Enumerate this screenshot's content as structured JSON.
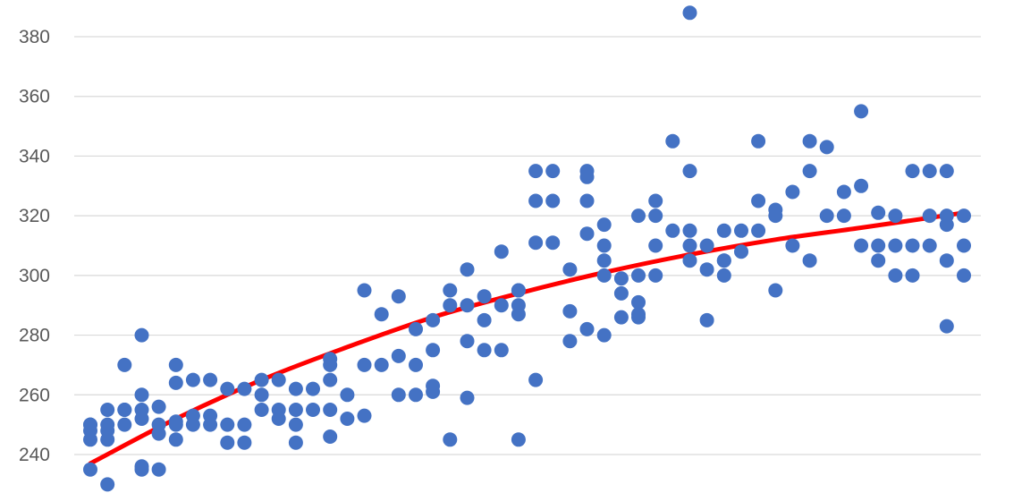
{
  "chart_data": {
    "type": "scatter",
    "title": "",
    "xlabel": "",
    "ylabel": "",
    "ylim": [
      230,
      390
    ],
    "y_ticks": [
      240,
      260,
      280,
      300,
      320,
      340,
      360,
      380
    ],
    "grid": true,
    "legend": "none",
    "colors": {
      "points": "#4472c4",
      "trendline": "#ff0000",
      "grid": "#d9d9d9",
      "tick_text": "#595959"
    },
    "xlim": [
      0,
      52.5
    ],
    "series": [
      {
        "name": "",
        "kind": "points",
        "x": [
          0,
          0,
          0,
          0,
          0,
          1,
          1,
          1,
          1,
          1,
          2,
          2,
          2,
          2,
          3,
          3,
          3,
          3,
          3,
          3,
          4,
          4,
          4,
          4,
          5,
          5,
          5,
          5,
          5,
          6,
          6,
          6,
          7,
          7,
          7,
          8,
          8,
          8,
          9,
          9,
          9,
          10,
          10,
          10,
          11,
          11,
          11,
          12,
          12,
          12,
          12,
          13,
          13,
          14,
          14,
          14,
          14,
          14,
          15,
          15,
          16,
          16,
          16,
          17,
          17,
          18,
          18,
          18,
          19,
          19,
          19,
          20,
          20,
          20,
          20,
          21,
          21,
          22,
          22,
          22,
          22,
          23,
          23,
          23,
          24,
          24,
          24,
          25,
          25,
          25,
          25,
          26,
          26,
          26,
          26,
          27,
          27,
          27,
          28,
          28,
          28,
          29,
          29,
          29,
          29,
          30,
          30,
          30,
          30,
          31,
          31,
          31,
          32,
          32,
          32,
          32,
          33,
          33,
          33,
          34,
          34,
          35,
          35,
          35,
          35,
          36,
          36,
          37,
          37,
          37,
          37,
          38,
          38,
          39,
          39,
          39,
          40,
          40,
          40,
          41,
          41,
          42,
          42,
          43,
          43,
          44,
          44,
          45,
          45,
          45,
          46,
          46,
          46,
          47,
          47,
          47,
          48,
          48,
          48,
          49,
          49,
          49,
          50,
          50,
          50,
          50,
          51,
          51,
          51
        ],
        "y": [
          250,
          248,
          245,
          250,
          235,
          255,
          250,
          245,
          248,
          230,
          270,
          255,
          250,
          255,
          280,
          260,
          255,
          252,
          236,
          235,
          256,
          250,
          247,
          235,
          270,
          264,
          251,
          245,
          250,
          265,
          253,
          250,
          265,
          253,
          250,
          262,
          250,
          244,
          262,
          250,
          244,
          265,
          260,
          255,
          265,
          255,
          252,
          262,
          255,
          250,
          244,
          262,
          255,
          272,
          270,
          265,
          255,
          246,
          260,
          252,
          295,
          270,
          253,
          287,
          270,
          293,
          273,
          260,
          282,
          270,
          260,
          285,
          275,
          263,
          261,
          295,
          290,
          302,
          290,
          278,
          259,
          293,
          285,
          275,
          308,
          290,
          275,
          295,
          290,
          287,
          245,
          335,
          325,
          311,
          265,
          335,
          325,
          311,
          302,
          288,
          278,
          335,
          333,
          325,
          314,
          317,
          310,
          305,
          300,
          299,
          294,
          286,
          300,
          291,
          287,
          286,
          325,
          320,
          300,
          345,
          315,
          335,
          315,
          310,
          305,
          310,
          302,
          315,
          305,
          300,
          305,
          315,
          308,
          345,
          325,
          315,
          322,
          320,
          295,
          328,
          310,
          345,
          335,
          343,
          320,
          328,
          320,
          355,
          330,
          310,
          321,
          310,
          305,
          320,
          310,
          300,
          335,
          310,
          300,
          335,
          320,
          310,
          335,
          320,
          317,
          305,
          320,
          310,
          300
        ]
      },
      {
        "name": "",
        "kind": "points",
        "x": [
          35,
          36,
          30,
          29,
          21,
          25,
          33,
          32,
          42,
          50
        ],
        "y": [
          388,
          285,
          280,
          282,
          245,
          295,
          310,
          320,
          305,
          283
        ]
      },
      {
        "name": "",
        "kind": "trendline",
        "x": [
          0,
          5,
          10,
          15,
          20,
          25,
          30,
          35,
          40,
          45,
          51
        ],
        "y": [
          237,
          252,
          265,
          276,
          286,
          294,
          301,
          307,
          312,
          316,
          321
        ]
      }
    ]
  }
}
